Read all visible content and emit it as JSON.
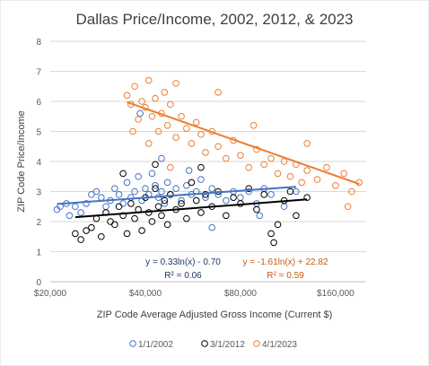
{
  "chart_data": {
    "type": "scatter",
    "title": "Dallas Price/Income, 2002, 2012, & 2023",
    "xlabel": "ZIP Code Average Adjusted Gross Income (Current $)",
    "ylabel": "ZIP Code Price/Income",
    "x_scale": "log2",
    "xlim": [
      20000,
      200000
    ],
    "ylim": [
      0,
      8
    ],
    "x_ticks": [
      "$20,000",
      "$40,000",
      "$80,000",
      "$160,000"
    ],
    "y_ticks": [
      "0",
      "1",
      "2",
      "3",
      "4",
      "5",
      "6",
      "7",
      "8"
    ],
    "grid": "horizontal",
    "legend": "bottom",
    "series": [
      {
        "name": "1/1/2002",
        "color": "#4472c4",
        "trendline": {
          "a": 0.33,
          "b": -0.7,
          "equation": "y = 0.33ln(x) - 0.70",
          "r2": "R² = 0.06"
        },
        "points": [
          [
            21000,
            2.4
          ],
          [
            21500,
            2.5
          ],
          [
            22500,
            2.6
          ],
          [
            23000,
            2.2
          ],
          [
            24000,
            2.5
          ],
          [
            25000,
            2.3
          ],
          [
            26000,
            2.6
          ],
          [
            27000,
            2.9
          ],
          [
            28000,
            3.0
          ],
          [
            29000,
            2.8
          ],
          [
            30000,
            2.5
          ],
          [
            31000,
            2.7
          ],
          [
            32000,
            3.1
          ],
          [
            33000,
            2.9
          ],
          [
            34000,
            2.6
          ],
          [
            35000,
            3.3
          ],
          [
            36000,
            2.8
          ],
          [
            37000,
            3.0
          ],
          [
            38000,
            3.5
          ],
          [
            39000,
            2.7
          ],
          [
            40000,
            3.1
          ],
          [
            41000,
            2.9
          ],
          [
            42000,
            3.6
          ],
          [
            43000,
            3.2
          ],
          [
            44000,
            2.8
          ],
          [
            45000,
            3.0
          ],
          [
            46000,
            2.6
          ],
          [
            47000,
            3.3
          ],
          [
            48000,
            2.9
          ],
          [
            50000,
            3.1
          ],
          [
            52000,
            2.7
          ],
          [
            54000,
            3.2
          ],
          [
            56000,
            2.9
          ],
          [
            58000,
            3.0
          ],
          [
            60000,
            3.4
          ],
          [
            62000,
            2.8
          ],
          [
            65000,
            3.1
          ],
          [
            68000,
            2.9
          ],
          [
            72000,
            2.7
          ],
          [
            76000,
            3.0
          ],
          [
            80000,
            2.8
          ],
          [
            85000,
            3.0
          ],
          [
            90000,
            2.6
          ],
          [
            95000,
            3.1
          ],
          [
            100000,
            2.9
          ],
          [
            110000,
            2.5
          ],
          [
            120000,
            3.0
          ],
          [
            38500,
            5.6
          ],
          [
            45000,
            4.1
          ],
          [
            55000,
            3.7
          ],
          [
            65000,
            1.8
          ],
          [
            92000,
            2.2
          ]
        ]
      },
      {
        "name": "3/1/2012",
        "color": "#000000",
        "trendline": {
          "a": 0.33,
          "b": -0.7,
          "equation": "",
          "r2": ""
        },
        "points": [
          [
            24000,
            1.6
          ],
          [
            25000,
            1.4
          ],
          [
            26000,
            1.7
          ],
          [
            27000,
            1.8
          ],
          [
            28000,
            2.1
          ],
          [
            29000,
            1.5
          ],
          [
            30000,
            2.3
          ],
          [
            31000,
            2.0
          ],
          [
            32000,
            1.9
          ],
          [
            33000,
            2.5
          ],
          [
            34000,
            2.2
          ],
          [
            35000,
            1.6
          ],
          [
            36000,
            2.6
          ],
          [
            37000,
            2.1
          ],
          [
            38000,
            2.4
          ],
          [
            39000,
            1.7
          ],
          [
            40000,
            2.8
          ],
          [
            41000,
            2.3
          ],
          [
            42000,
            2.0
          ],
          [
            43000,
            3.1
          ],
          [
            44000,
            2.5
          ],
          [
            45000,
            2.2
          ],
          [
            46000,
            2.7
          ],
          [
            47000,
            1.9
          ],
          [
            48000,
            2.9
          ],
          [
            50000,
            2.4
          ],
          [
            52000,
            2.6
          ],
          [
            54000,
            2.1
          ],
          [
            56000,
            3.3
          ],
          [
            58000,
            2.7
          ],
          [
            60000,
            2.3
          ],
          [
            62000,
            2.9
          ],
          [
            65000,
            2.5
          ],
          [
            68000,
            3.0
          ],
          [
            72000,
            2.2
          ],
          [
            76000,
            2.8
          ],
          [
            80000,
            2.6
          ],
          [
            85000,
            3.1
          ],
          [
            90000,
            2.4
          ],
          [
            95000,
            2.9
          ],
          [
            100000,
            1.6
          ],
          [
            105000,
            1.9
          ],
          [
            110000,
            2.7
          ],
          [
            115000,
            3.0
          ],
          [
            120000,
            2.2
          ],
          [
            130000,
            2.8
          ],
          [
            34000,
            3.6
          ],
          [
            43000,
            3.9
          ],
          [
            60000,
            3.8
          ],
          [
            102000,
            1.3
          ]
        ]
      },
      {
        "name": "4/1/2023",
        "color": "#ed7d31",
        "trendline": {
          "a": -1.61,
          "b": 22.82,
          "equation": "y = -1.61ln(x) + 22.82",
          "r2": "R² = 0.59"
        },
        "points": [
          [
            35000,
            6.2
          ],
          [
            36000,
            5.9
          ],
          [
            37000,
            6.5
          ],
          [
            38000,
            5.4
          ],
          [
            39000,
            6.0
          ],
          [
            40000,
            5.8
          ],
          [
            41000,
            6.7
          ],
          [
            42000,
            5.5
          ],
          [
            43000,
            6.1
          ],
          [
            44000,
            5.0
          ],
          [
            45000,
            5.6
          ],
          [
            46000,
            6.3
          ],
          [
            47000,
            5.2
          ],
          [
            48000,
            5.9
          ],
          [
            50000,
            4.8
          ],
          [
            52000,
            5.5
          ],
          [
            54000,
            5.1
          ],
          [
            56000,
            4.6
          ],
          [
            58000,
            5.3
          ],
          [
            60000,
            4.9
          ],
          [
            62000,
            4.3
          ],
          [
            65000,
            5.0
          ],
          [
            68000,
            4.5
          ],
          [
            72000,
            4.1
          ],
          [
            76000,
            4.7
          ],
          [
            80000,
            4.2
          ],
          [
            85000,
            3.8
          ],
          [
            90000,
            4.4
          ],
          [
            95000,
            3.9
          ],
          [
            100000,
            4.1
          ],
          [
            105000,
            3.6
          ],
          [
            110000,
            4.0
          ],
          [
            115000,
            3.5
          ],
          [
            120000,
            3.9
          ],
          [
            125000,
            3.3
          ],
          [
            130000,
            3.7
          ],
          [
            140000,
            3.4
          ],
          [
            150000,
            3.8
          ],
          [
            160000,
            3.2
          ],
          [
            170000,
            3.6
          ],
          [
            180000,
            3.0
          ],
          [
            190000,
            3.3
          ],
          [
            175000,
            2.5
          ],
          [
            36500,
            5.0
          ],
          [
            50000,
            6.6
          ],
          [
            68000,
            6.3
          ],
          [
            88000,
            5.2
          ],
          [
            130000,
            4.6
          ],
          [
            48000,
            3.8
          ],
          [
            41000,
            4.6
          ]
        ]
      }
    ]
  }
}
